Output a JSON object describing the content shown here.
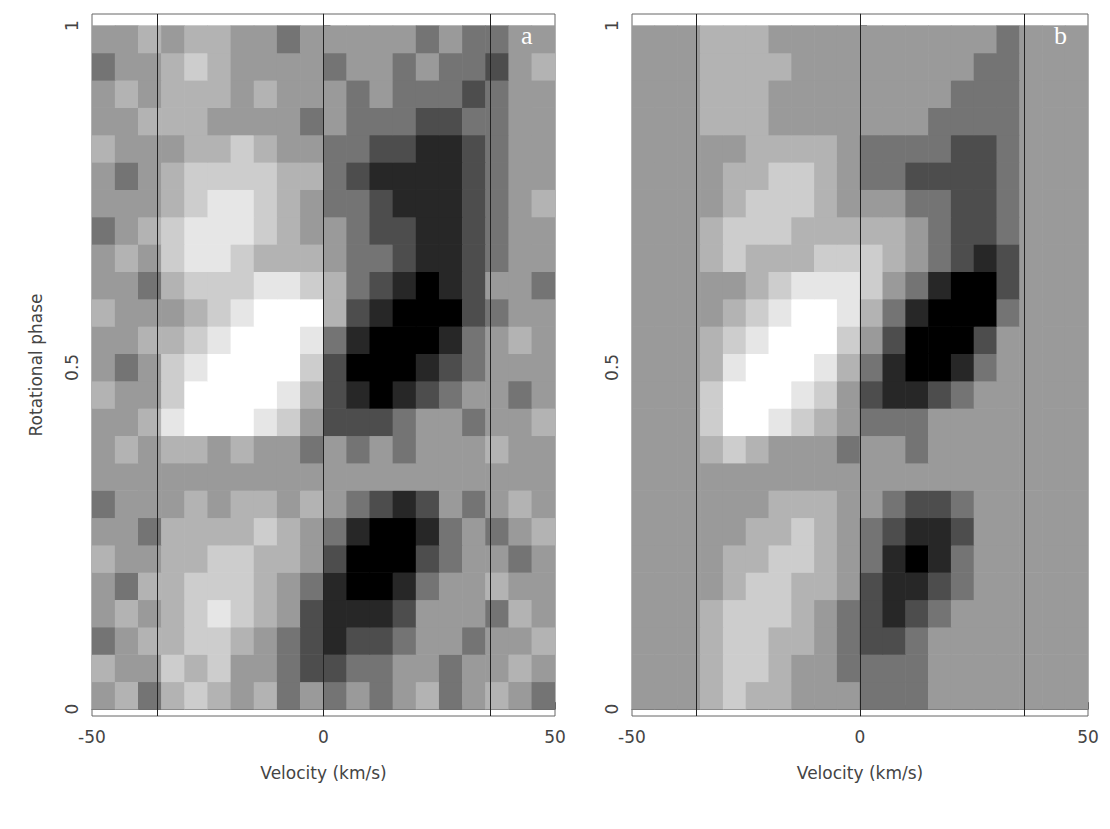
{
  "chart_data": [
    {
      "type": "heatmap",
      "panel_label": "a",
      "x_label": "Velocity (km/s)",
      "y_label": "Rotational phase",
      "xlim": [
        -50,
        50
      ],
      "xticks": [
        -50,
        0,
        50
      ],
      "ylim": [
        -0.01,
        1.017
      ],
      "yticks": [
        0,
        0.5,
        1
      ],
      "vlines": [
        -36,
        0,
        36
      ],
      "color_range": [
        -4,
        4
      ],
      "x_edges": [
        -50,
        -45,
        -40,
        -35,
        -30,
        -25,
        -20,
        -15,
        -10,
        -5,
        0,
        5,
        10,
        15,
        20,
        25,
        30,
        35,
        40,
        45,
        50
      ],
      "y_edges": [
        0,
        0.04,
        0.08,
        0.12,
        0.16,
        0.2,
        0.24,
        0.28,
        0.32,
        0.36,
        0.4,
        0.44,
        0.48,
        0.52,
        0.56,
        0.6,
        0.64,
        0.68,
        0.72,
        0.76,
        0.8,
        0.84,
        0.88,
        0.92,
        0.96,
        1
      ],
      "cells": [
        [
          0,
          1,
          -1,
          1,
          2,
          1,
          0,
          1,
          -1,
          0,
          -1,
          0,
          -1,
          0,
          1,
          -1,
          0,
          1,
          0,
          -1
        ],
        [
          1,
          0,
          0,
          2,
          1,
          2,
          0,
          0,
          -1,
          -2,
          -2,
          -1,
          -1,
          0,
          0,
          -1,
          0,
          0,
          1,
          0
        ],
        [
          -1,
          0,
          1,
          1,
          2,
          2,
          1,
          0,
          -1,
          -2,
          -3,
          -2,
          -2,
          -1,
          0,
          0,
          -1,
          0,
          0,
          1
        ],
        [
          0,
          1,
          0,
          1,
          2,
          3,
          2,
          1,
          0,
          -2,
          -3,
          -3,
          -3,
          -2,
          0,
          0,
          0,
          -1,
          1,
          0
        ],
        [
          0,
          -1,
          1,
          1,
          2,
          2,
          2,
          1,
          0,
          -1,
          -3,
          -4,
          -4,
          -3,
          -1,
          0,
          0,
          1,
          0,
          0
        ],
        [
          1,
          0,
          0,
          1,
          1,
          2,
          2,
          1,
          1,
          0,
          -2,
          -4,
          -4,
          -4,
          -2,
          -1,
          0,
          0,
          -1,
          0
        ],
        [
          0,
          0,
          -1,
          1,
          1,
          1,
          1,
          2,
          1,
          0,
          -1,
          -3,
          -4,
          -4,
          -3,
          -1,
          0,
          -1,
          0,
          1
        ],
        [
          -1,
          0,
          0,
          0,
          1,
          0,
          1,
          1,
          0,
          1,
          0,
          -1,
          -2,
          -3,
          -2,
          0,
          -1,
          0,
          1,
          0
        ],
        [
          0,
          0,
          0,
          0,
          0,
          0,
          0,
          0,
          0,
          0,
          0,
          0,
          0,
          0,
          0,
          0,
          0,
          0,
          0,
          0
        ],
        [
          0,
          1,
          0,
          1,
          1,
          0,
          1,
          0,
          0,
          -1,
          0,
          -1,
          0,
          -1,
          0,
          0,
          0,
          1,
          0,
          0
        ],
        [
          0,
          0,
          1,
          3,
          4,
          4,
          4,
          3,
          2,
          0,
          -2,
          -2,
          -2,
          -1,
          0,
          0,
          -1,
          0,
          0,
          1
        ],
        [
          1,
          0,
          0,
          2,
          4,
          4,
          4,
          4,
          3,
          1,
          -2,
          -3,
          -4,
          -3,
          -2,
          -1,
          0,
          0,
          -1,
          0
        ],
        [
          0,
          -1,
          0,
          2,
          3,
          4,
          4,
          4,
          4,
          2,
          -2,
          -4,
          -4,
          -4,
          -3,
          -2,
          -1,
          0,
          0,
          0
        ],
        [
          0,
          0,
          1,
          1,
          2,
          3,
          4,
          4,
          4,
          3,
          -1,
          -3,
          -4,
          -4,
          -4,
          -3,
          -1,
          0,
          1,
          0
        ],
        [
          1,
          0,
          0,
          0,
          1,
          2,
          3,
          4,
          4,
          4,
          1,
          -2,
          -3,
          -4,
          -4,
          -4,
          -2,
          -1,
          0,
          0
        ],
        [
          0,
          0,
          -1,
          1,
          2,
          2,
          2,
          3,
          3,
          2,
          1,
          -1,
          -2,
          -3,
          -4,
          -3,
          -2,
          0,
          0,
          -1
        ],
        [
          0,
          1,
          0,
          2,
          3,
          3,
          2,
          1,
          1,
          1,
          0,
          -1,
          -1,
          -2,
          -3,
          -3,
          -2,
          -1,
          0,
          0
        ],
        [
          -1,
          0,
          1,
          2,
          3,
          3,
          3,
          2,
          1,
          0,
          0,
          -1,
          -2,
          -2,
          -3,
          -3,
          -2,
          -1,
          0,
          0
        ],
        [
          0,
          0,
          0,
          1,
          2,
          3,
          3,
          2,
          1,
          0,
          -1,
          -1,
          -2,
          -3,
          -3,
          -3,
          -2,
          -1,
          0,
          1
        ],
        [
          0,
          -1,
          0,
          1,
          2,
          2,
          2,
          2,
          1,
          1,
          -1,
          -2,
          -3,
          -3,
          -3,
          -3,
          -2,
          -1,
          0,
          0
        ],
        [
          1,
          0,
          0,
          0,
          1,
          1,
          2,
          1,
          0,
          0,
          -1,
          -1,
          -2,
          -2,
          -3,
          -3,
          -2,
          -1,
          0,
          0
        ],
        [
          0,
          0,
          1,
          1,
          1,
          0,
          0,
          0,
          0,
          -1,
          0,
          -1,
          -1,
          -1,
          -2,
          -2,
          -1,
          -1,
          0,
          0
        ],
        [
          0,
          1,
          0,
          1,
          1,
          1,
          0,
          1,
          0,
          0,
          0,
          -1,
          0,
          -1,
          -1,
          -1,
          -2,
          -1,
          0,
          0
        ],
        [
          -1,
          0,
          0,
          1,
          2,
          1,
          0,
          0,
          0,
          0,
          -1,
          0,
          0,
          -1,
          0,
          -1,
          -1,
          -2,
          0,
          1
        ],
        [
          0,
          0,
          1,
          0,
          1,
          1,
          0,
          0,
          -1,
          0,
          0,
          0,
          0,
          0,
          -1,
          0,
          -1,
          -1,
          0,
          0
        ]
      ]
    },
    {
      "type": "heatmap",
      "panel_label": "b",
      "x_label": "Velocity (km/s)",
      "xlim": [
        -50,
        50
      ],
      "xticks": [
        -50,
        0,
        50
      ],
      "ylim": [
        -0.01,
        1.017
      ],
      "yticks": [
        0,
        0.5,
        1
      ],
      "vlines": [
        -36,
        0,
        36
      ],
      "color_range": [
        -4,
        4
      ],
      "x_edges": [
        -50,
        -45,
        -40,
        -35,
        -30,
        -25,
        -20,
        -15,
        -10,
        -5,
        0,
        5,
        10,
        15,
        20,
        25,
        30,
        35,
        40,
        45,
        50
      ],
      "y_edges": [
        0,
        0.04,
        0.08,
        0.12,
        0.16,
        0.2,
        0.24,
        0.28,
        0.32,
        0.36,
        0.4,
        0.44,
        0.48,
        0.52,
        0.56,
        0.6,
        0.64,
        0.68,
        0.72,
        0.76,
        0.8,
        0.84,
        0.88,
        0.92,
        0.96,
        1
      ],
      "cells": [
        [
          0,
          0,
          0,
          1,
          2,
          1,
          1,
          0,
          0,
          0,
          -1,
          -1,
          -1,
          0,
          0,
          0,
          0,
          0,
          0,
          0
        ],
        [
          0,
          0,
          0,
          1,
          2,
          2,
          1,
          0,
          0,
          -1,
          -1,
          -1,
          -1,
          0,
          0,
          0,
          0,
          0,
          0,
          0
        ],
        [
          0,
          0,
          0,
          1,
          2,
          2,
          1,
          1,
          0,
          -1,
          -2,
          -2,
          -1,
          0,
          0,
          0,
          0,
          0,
          0,
          0
        ],
        [
          0,
          0,
          0,
          1,
          2,
          2,
          2,
          1,
          0,
          -1,
          -2,
          -3,
          -2,
          -1,
          0,
          0,
          0,
          0,
          0,
          0
        ],
        [
          0,
          0,
          0,
          0,
          1,
          2,
          2,
          1,
          1,
          0,
          -2,
          -3,
          -3,
          -2,
          -1,
          0,
          0,
          0,
          0,
          0
        ],
        [
          0,
          0,
          0,
          0,
          1,
          1,
          2,
          2,
          1,
          0,
          -1,
          -3,
          -4,
          -3,
          -1,
          0,
          0,
          0,
          0,
          0
        ],
        [
          0,
          0,
          0,
          0,
          0,
          1,
          1,
          2,
          1,
          0,
          -1,
          -2,
          -3,
          -3,
          -2,
          0,
          0,
          0,
          0,
          0
        ],
        [
          0,
          0,
          0,
          0,
          0,
          0,
          1,
          1,
          1,
          0,
          0,
          -1,
          -2,
          -2,
          -1,
          0,
          0,
          0,
          0,
          0
        ],
        [
          0,
          0,
          0,
          0,
          0,
          0,
          0,
          0,
          0,
          0,
          0,
          0,
          0,
          0,
          0,
          0,
          0,
          0,
          0,
          0
        ],
        [
          0,
          0,
          0,
          1,
          2,
          1,
          0,
          0,
          0,
          -1,
          0,
          0,
          -1,
          0,
          0,
          0,
          0,
          0,
          0,
          0
        ],
        [
          0,
          0,
          0,
          2,
          4,
          4,
          3,
          2,
          1,
          0,
          -1,
          -1,
          -1,
          0,
          0,
          0,
          0,
          0,
          0,
          0
        ],
        [
          0,
          0,
          0,
          2,
          4,
          4,
          4,
          3,
          2,
          0,
          -2,
          -3,
          -3,
          -2,
          -1,
          0,
          0,
          0,
          0,
          0
        ],
        [
          0,
          0,
          0,
          1,
          3,
          4,
          4,
          4,
          3,
          1,
          -1,
          -3,
          -4,
          -4,
          -3,
          -1,
          0,
          0,
          0,
          0
        ],
        [
          0,
          0,
          0,
          1,
          2,
          3,
          4,
          4,
          4,
          2,
          0,
          -2,
          -4,
          -4,
          -4,
          -2,
          0,
          0,
          0,
          0
        ],
        [
          0,
          0,
          0,
          0,
          1,
          2,
          3,
          4,
          4,
          3,
          1,
          -1,
          -3,
          -4,
          -4,
          -4,
          -1,
          0,
          0,
          0
        ],
        [
          0,
          0,
          0,
          0,
          0,
          1,
          2,
          3,
          3,
          3,
          2,
          0,
          -1,
          -3,
          -4,
          -4,
          -2,
          0,
          0,
          0
        ],
        [
          0,
          0,
          0,
          1,
          2,
          1,
          1,
          1,
          2,
          2,
          2,
          1,
          0,
          -1,
          -2,
          -3,
          -2,
          0,
          0,
          0
        ],
        [
          0,
          0,
          0,
          1,
          2,
          2,
          2,
          1,
          1,
          1,
          1,
          1,
          0,
          -1,
          -2,
          -2,
          -1,
          0,
          0,
          0
        ],
        [
          0,
          0,
          0,
          0,
          1,
          2,
          2,
          2,
          1,
          0,
          0,
          0,
          -1,
          -1,
          -2,
          -2,
          -1,
          0,
          0,
          0
        ],
        [
          0,
          0,
          0,
          0,
          1,
          1,
          2,
          2,
          1,
          0,
          -1,
          -1,
          -2,
          -2,
          -2,
          -2,
          -1,
          0,
          0,
          0
        ],
        [
          0,
          0,
          0,
          0,
          0,
          1,
          1,
          1,
          1,
          0,
          -1,
          -1,
          -1,
          -1,
          -2,
          -2,
          -1,
          0,
          0,
          0
        ],
        [
          0,
          0,
          0,
          1,
          1,
          1,
          0,
          0,
          0,
          0,
          0,
          0,
          0,
          -1,
          -1,
          -1,
          -1,
          0,
          0,
          0
        ],
        [
          0,
          0,
          0,
          1,
          1,
          1,
          0,
          0,
          0,
          0,
          0,
          0,
          0,
          0,
          -1,
          -1,
          -1,
          0,
          0,
          0
        ],
        [
          0,
          0,
          0,
          1,
          1,
          1,
          1,
          0,
          0,
          0,
          0,
          0,
          0,
          0,
          0,
          -1,
          -1,
          0,
          0,
          0
        ],
        [
          0,
          0,
          0,
          1,
          1,
          1,
          0,
          0,
          0,
          0,
          0,
          0,
          0,
          0,
          0,
          0,
          -1,
          0,
          0,
          0
        ]
      ]
    }
  ]
}
